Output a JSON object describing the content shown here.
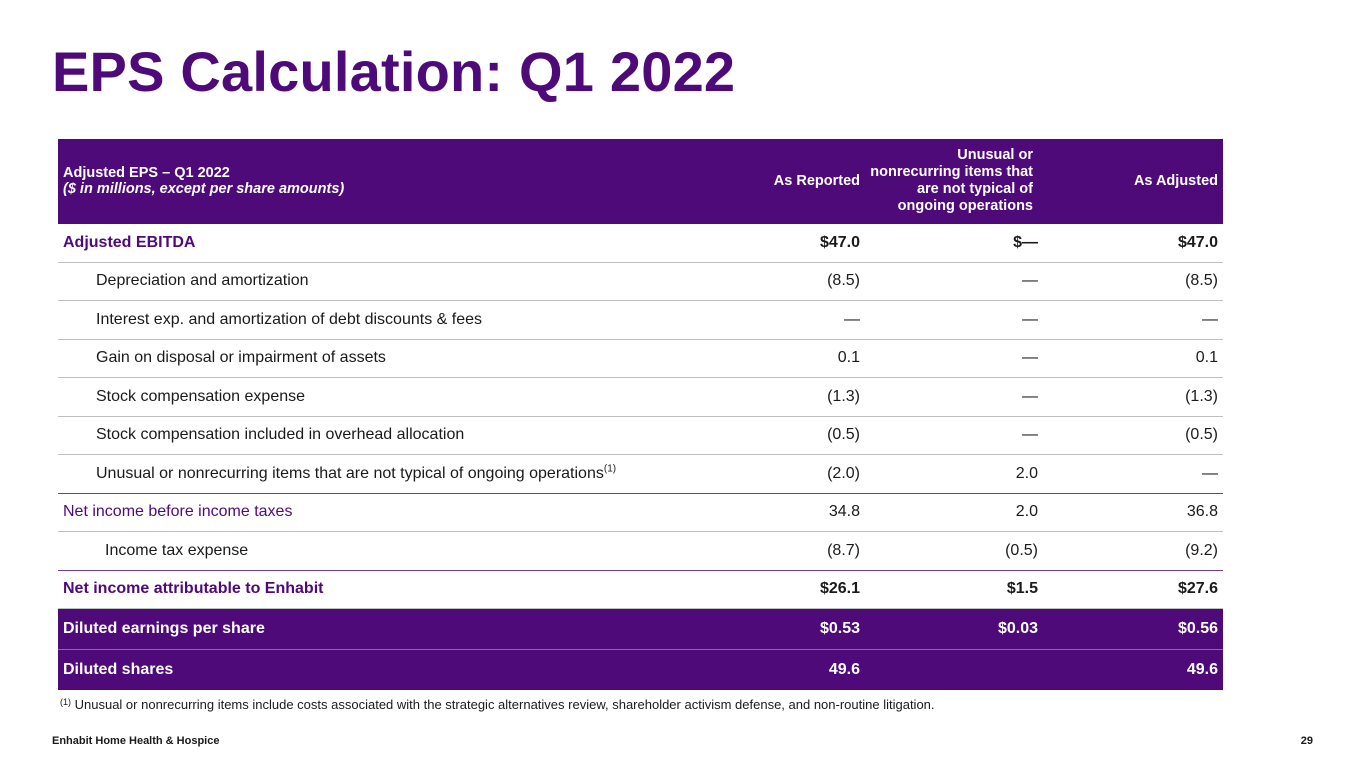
{
  "title": "EPS Calculation: Q1 2022",
  "table": {
    "header": {
      "label_line1": "Adjusted EPS – Q1 2022",
      "label_line2": "($ in millions, except per share amounts)",
      "col_reported": "As Reported",
      "col_unusual": "Unusual or nonrecurring items that are not typical of ongoing operations",
      "col_adjusted": "As Adjusted"
    },
    "rows": [
      {
        "label": "Adjusted EBITDA",
        "reported": "$47.0",
        "unusual": "$—",
        "adjusted": "$47.0"
      },
      {
        "label": "Depreciation and amortization",
        "reported": "(8.5)",
        "unusual": "—",
        "adjusted": "(8.5)"
      },
      {
        "label": "Interest exp. and amortization of debt discounts & fees",
        "reported": "—",
        "unusual": "—",
        "adjusted": "—"
      },
      {
        "label": "Gain on disposal or impairment of assets",
        "reported": "0.1",
        "unusual": "—",
        "adjusted": "0.1"
      },
      {
        "label": "Stock compensation expense",
        "reported": "(1.3)",
        "unusual": "—",
        "adjusted": "(1.3)"
      },
      {
        "label": "Stock compensation included in overhead allocation",
        "reported": "(0.5)",
        "unusual": "—",
        "adjusted": "(0.5)"
      },
      {
        "label": "Unusual or nonrecurring items that are not typical of ongoing operations",
        "label_sup": "(1)",
        "reported": "(2.0)",
        "unusual": "2.0",
        "adjusted": "—"
      },
      {
        "label": "Net income before income taxes",
        "reported": "34.8",
        "unusual": "2.0",
        "adjusted": "36.8"
      },
      {
        "label": "Income tax expense",
        "reported": "(8.7)",
        "unusual": "(0.5)",
        "adjusted": "(9.2)"
      },
      {
        "label": "Net income attributable to Enhabit",
        "reported": "$26.1",
        "unusual": "$1.5",
        "adjusted": "$27.6"
      },
      {
        "label": "Diluted earnings per share",
        "reported": "$0.53",
        "unusual": "$0.03",
        "adjusted": "$0.56"
      },
      {
        "label": "Diluted shares",
        "reported": "49.6",
        "unusual": "",
        "adjusted": "49.6"
      }
    ]
  },
  "footnote": {
    "marker": "(1)",
    "text": "Unusual or nonrecurring items include costs associated with the strategic alternatives review, shareholder activism defense, and non-routine litigation."
  },
  "footer": {
    "brand": "Enhabit Home Health & Hospice",
    "page_number": "29"
  },
  "colors": {
    "brand_purple": "#4e0a78"
  }
}
